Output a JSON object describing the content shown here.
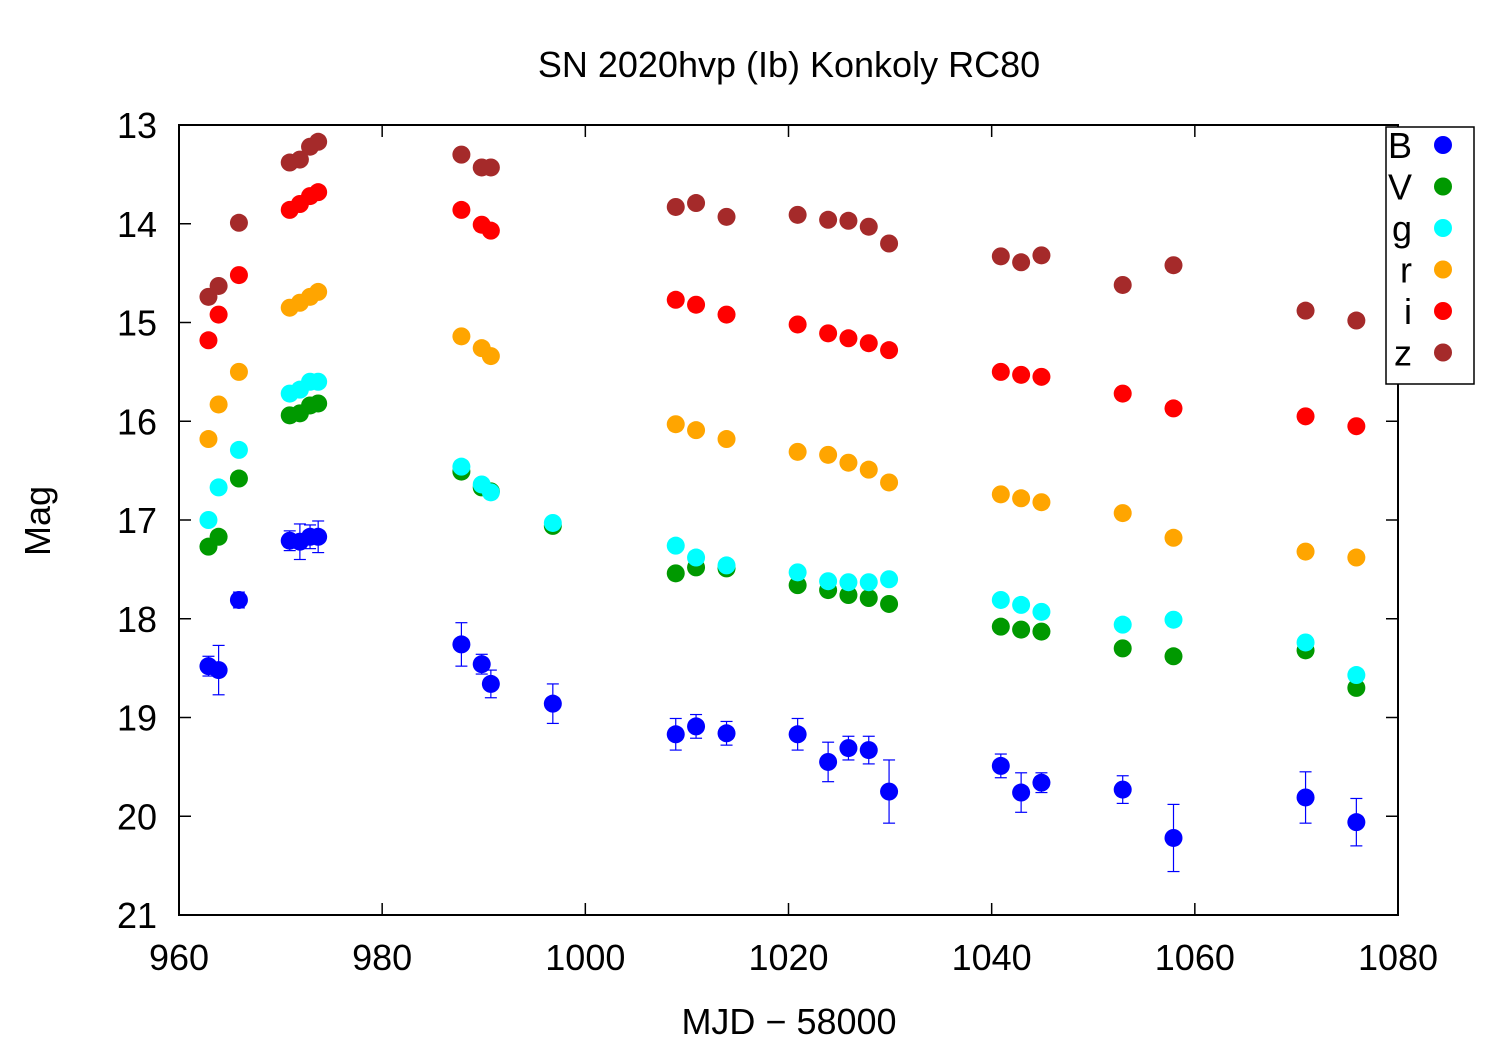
{
  "chart_data": {
    "type": "scatter",
    "title": "SN 2020hvp (Ib) Konkoly RC80",
    "xlabel": "MJD − 58000",
    "ylabel": "Mag",
    "xlim": [
      960,
      1080
    ],
    "ylim": [
      21,
      13
    ],
    "y_inverted": true,
    "grid": false,
    "legend_position": "top-right",
    "x_ticks": [
      "960",
      "980",
      "1000",
      "1020",
      "1040",
      "1060",
      "1080"
    ],
    "y_ticks": [
      "13",
      "14",
      "15",
      "16",
      "17",
      "18",
      "19",
      "20",
      "21"
    ],
    "series": [
      {
        "name": "B",
        "color": "#0000ff",
        "x": [
          962.9,
          963.9,
          965.9,
          970.9,
          971.9,
          972.9,
          973.7,
          987.8,
          989.8,
          990.7,
          996.8,
          1008.9,
          1010.9,
          1013.9,
          1020.9,
          1023.9,
          1025.9,
          1027.9,
          1029.9,
          1040.9,
          1042.9,
          1044.9,
          1052.9,
          1057.9,
          1070.9,
          1075.9
        ],
        "y": [
          18.48,
          18.52,
          17.81,
          17.21,
          17.22,
          17.17,
          17.17,
          18.26,
          18.46,
          18.66,
          18.86,
          19.17,
          19.09,
          19.16,
          19.17,
          19.45,
          19.31,
          19.33,
          19.75,
          19.49,
          19.76,
          19.66,
          19.73,
          20.22,
          19.81,
          20.06
        ],
        "err": [
          0.1,
          0.25,
          0.08,
          0.1,
          0.18,
          0.12,
          0.16,
          0.22,
          0.1,
          0.14,
          0.2,
          0.16,
          0.12,
          0.12,
          0.16,
          0.2,
          0.12,
          0.14,
          0.32,
          0.12,
          0.2,
          0.1,
          0.14,
          0.34,
          0.26,
          0.24
        ]
      },
      {
        "name": "V",
        "color": "#009900",
        "x": [
          962.9,
          963.9,
          965.9,
          970.9,
          971.9,
          972.9,
          973.7,
          987.8,
          989.8,
          990.7,
          996.8,
          1008.9,
          1010.9,
          1013.9,
          1020.9,
          1023.9,
          1025.9,
          1027.9,
          1029.9,
          1040.9,
          1042.9,
          1044.9,
          1052.9,
          1057.9,
          1070.9,
          1075.9
        ],
        "y": [
          17.27,
          17.17,
          16.58,
          15.94,
          15.92,
          15.84,
          15.82,
          16.51,
          16.67,
          16.71,
          17.06,
          17.54,
          17.48,
          17.49,
          17.66,
          17.71,
          17.76,
          17.79,
          17.85,
          18.08,
          18.11,
          18.13,
          18.3,
          18.38,
          18.32,
          18.7
        ]
      },
      {
        "name": "g",
        "color": "#00ffff",
        "x": [
          962.9,
          963.9,
          965.9,
          970.9,
          971.9,
          972.9,
          973.7,
          987.8,
          989.8,
          990.7,
          996.8,
          1008.9,
          1010.9,
          1013.9,
          1020.9,
          1023.9,
          1025.9,
          1027.9,
          1029.9,
          1040.9,
          1042.9,
          1044.9,
          1052.9,
          1057.9,
          1070.9,
          1075.9
        ],
        "y": [
          17.0,
          16.67,
          16.29,
          15.72,
          15.68,
          15.6,
          15.6,
          16.46,
          16.64,
          16.72,
          17.03,
          17.26,
          17.38,
          17.46,
          17.53,
          17.62,
          17.63,
          17.63,
          17.6,
          17.81,
          17.86,
          17.93,
          18.06,
          18.01,
          18.24,
          18.57
        ]
      },
      {
        "name": "r",
        "color": "#ffa500",
        "x": [
          962.9,
          963.9,
          965.9,
          970.9,
          971.9,
          972.9,
          973.7,
          987.8,
          989.8,
          990.7,
          1008.9,
          1010.9,
          1013.9,
          1020.9,
          1023.9,
          1025.9,
          1027.9,
          1029.9,
          1040.9,
          1042.9,
          1044.9,
          1052.9,
          1057.9,
          1070.9,
          1075.9
        ],
        "y": [
          16.18,
          15.83,
          15.5,
          14.85,
          14.8,
          14.74,
          14.69,
          15.14,
          15.26,
          15.34,
          16.03,
          16.09,
          16.18,
          16.31,
          16.34,
          16.42,
          16.49,
          16.62,
          16.74,
          16.78,
          16.82,
          16.93,
          17.18,
          17.32,
          17.38
        ]
      },
      {
        "name": "i",
        "color": "#ff0000",
        "x": [
          962.9,
          963.9,
          965.9,
          970.9,
          971.9,
          972.9,
          973.7,
          987.8,
          989.8,
          990.7,
          1008.9,
          1010.9,
          1013.9,
          1020.9,
          1023.9,
          1025.9,
          1027.9,
          1029.9,
          1040.9,
          1042.9,
          1044.9,
          1052.9,
          1057.9,
          1070.9,
          1075.9
        ],
        "y": [
          15.18,
          14.92,
          14.52,
          13.86,
          13.8,
          13.72,
          13.68,
          13.86,
          14.01,
          14.07,
          14.77,
          14.82,
          14.92,
          15.02,
          15.11,
          15.16,
          15.21,
          15.28,
          15.5,
          15.53,
          15.55,
          15.72,
          15.87,
          15.95,
          16.05
        ]
      },
      {
        "name": "z",
        "color": "#a52a2a",
        "x": [
          962.9,
          963.9,
          965.9,
          970.9,
          971.9,
          972.9,
          973.7,
          987.8,
          989.8,
          990.7,
          1008.9,
          1010.9,
          1013.9,
          1020.9,
          1023.9,
          1025.9,
          1027.9,
          1029.9,
          1040.9,
          1042.9,
          1044.9,
          1052.9,
          1057.9,
          1070.9,
          1075.9
        ],
        "y": [
          14.74,
          14.63,
          13.99,
          13.38,
          13.35,
          13.22,
          13.17,
          13.3,
          13.43,
          13.43,
          13.83,
          13.79,
          13.93,
          13.91,
          13.96,
          13.97,
          14.03,
          14.2,
          14.33,
          14.39,
          14.32,
          14.62,
          14.42,
          14.88,
          14.98
        ]
      }
    ]
  }
}
